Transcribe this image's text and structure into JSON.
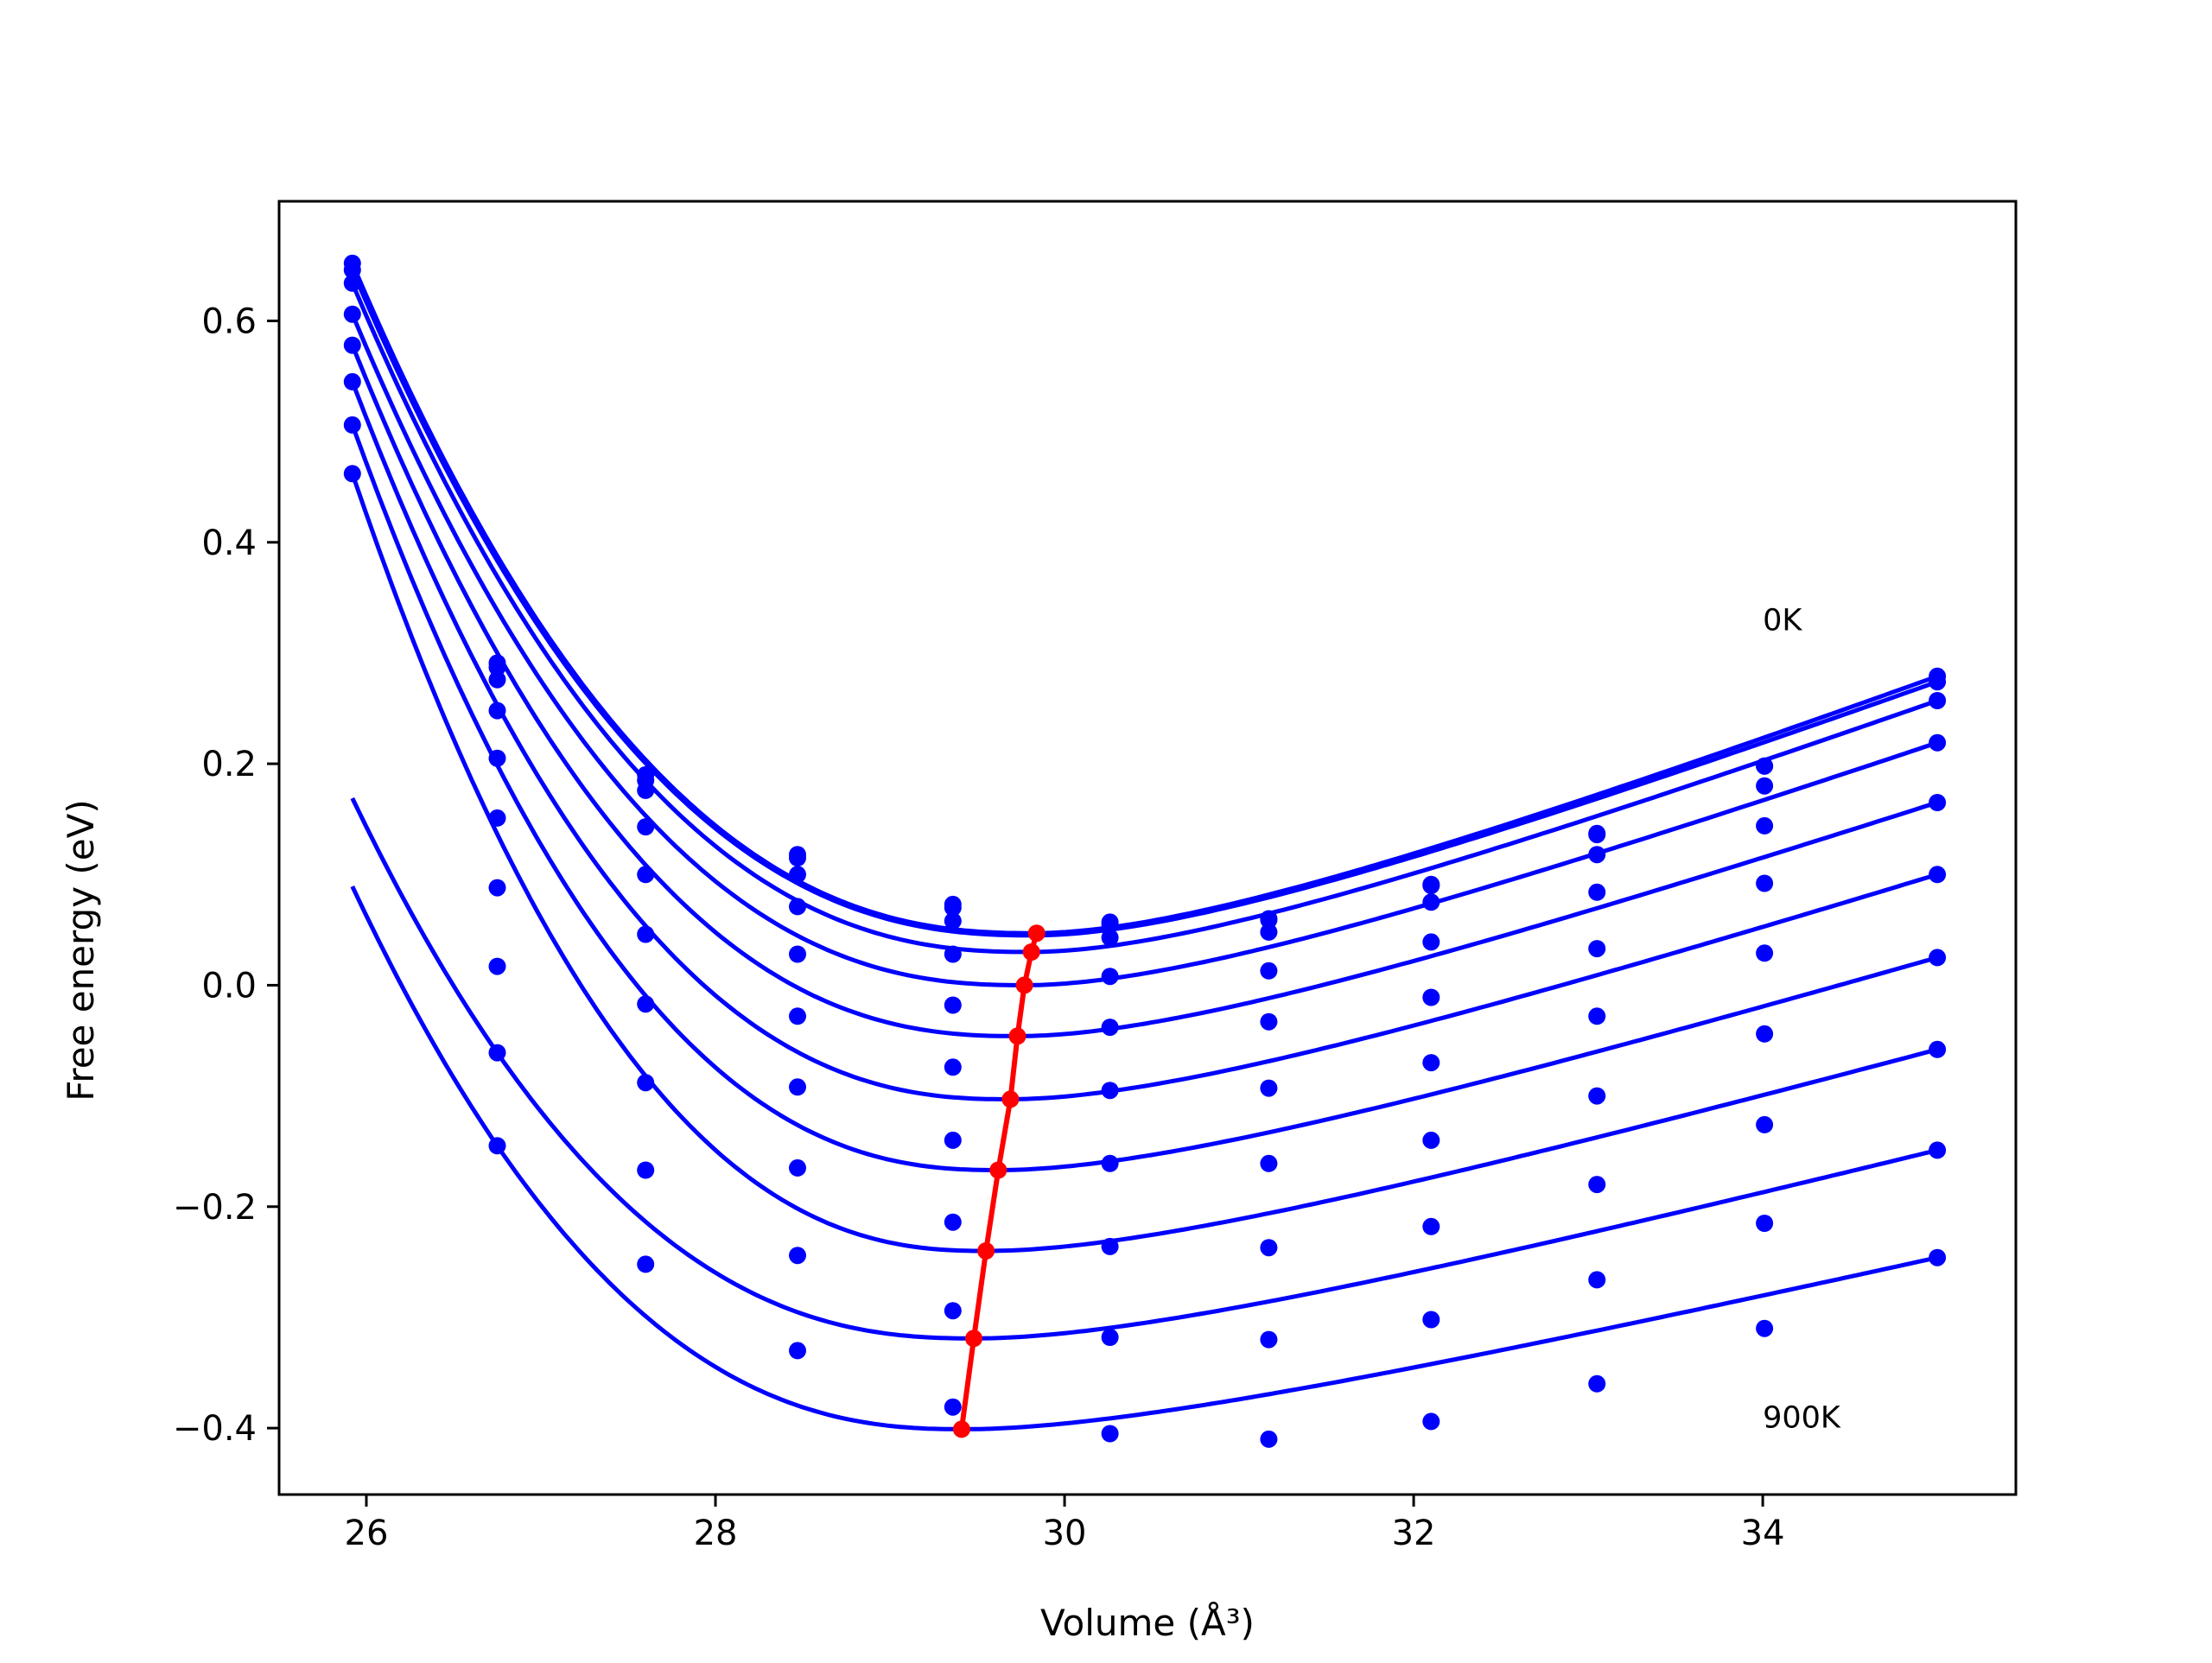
{
  "chart_data": {
    "type": "line",
    "xlabel": "Volume (Å³)",
    "ylabel": "Free energy (eV)",
    "xlim": [
      25.5,
      35.45
    ],
    "ylim": [
      -0.46,
      0.708
    ],
    "xticks": [
      26,
      28,
      30,
      32,
      34
    ],
    "xtick_labels": [
      "26",
      "28",
      "30",
      "32",
      "34"
    ],
    "yticks": [
      -0.4,
      -0.2,
      0.0,
      0.2,
      0.4,
      0.6
    ],
    "ytick_labels": [
      "−0.4",
      "−0.2",
      "0.0",
      "0.2",
      "0.4",
      "0.6"
    ],
    "grid": false,
    "legend": "none",
    "annotations": [
      {
        "text": "0K",
        "x": 34.0,
        "y": 0.33
      },
      {
        "text": "900K",
        "x": 34.0,
        "y": -0.39
      }
    ],
    "colors": {
      "curves": "#0000ff",
      "points": "#0000ff",
      "minima": "#ff0000",
      "frame": "#000000"
    },
    "curve_x_range": [
      25.92,
      35.0
    ],
    "x": [
      25.92,
      26.75,
      27.6,
      28.47,
      29.36,
      30.26,
      31.17,
      32.1,
      33.05,
      34.01,
      35.0
    ],
    "series": [
      {
        "values": [
          0.652,
          0.291,
          0.19,
          0.118,
          0.073,
          0.057,
          0.06,
          0.091,
          0.137,
          0.198,
          0.279
        ],
        "fit": {
          "min_x": 29.82,
          "min_y": 0.047
        }
      },
      {
        "values": [
          0.646,
          0.287,
          0.185,
          0.115,
          0.07,
          0.055,
          0.059,
          0.09,
          0.136,
          0.198,
          0.274
        ],
        "fit": {
          "min_x": 29.82,
          "min_y": 0.045
        }
      },
      {
        "values": [
          0.634,
          0.276,
          0.176,
          0.1,
          0.058,
          0.043,
          0.048,
          0.075,
          0.118,
          0.18,
          0.257
        ],
        "fit": {
          "min_x": 29.8,
          "min_y": 0.03
        }
      },
      {
        "values": [
          0.606,
          0.248,
          0.143,
          0.071,
          0.028,
          0.008,
          0.013,
          0.039,
          0.084,
          0.144,
          0.219
        ],
        "fit": {
          "min_x": 29.77,
          "min_y": 0.0
        }
      },
      {
        "values": [
          0.578,
          0.205,
          0.1,
          0.028,
          -0.018,
          -0.038,
          -0.033,
          -0.011,
          0.033,
          0.092,
          0.165
        ],
        "fit": {
          "min_x": 29.73,
          "min_y": -0.046
        }
      },
      {
        "values": [
          0.545,
          0.151,
          0.046,
          -0.028,
          -0.074,
          -0.095,
          -0.093,
          -0.07,
          -0.028,
          0.029,
          0.1
        ],
        "fit": {
          "min_x": 29.68,
          "min_y": -0.103
        }
      },
      {
        "values": [
          0.506,
          0.088,
          -0.017,
          -0.092,
          -0.14,
          -0.161,
          -0.161,
          -0.14,
          -0.1,
          -0.044,
          0.025
        ],
        "fit": {
          "min_x": 29.62,
          "min_y": -0.167
        }
      },
      {
        "values": [
          0.462,
          0.017,
          -0.088,
          -0.165,
          -0.214,
          -0.236,
          -0.237,
          -0.218,
          -0.18,
          -0.126,
          -0.058
        ],
        "fit": {
          "min_x": 29.55,
          "min_y": -0.24
        }
      },
      {
        "values": [
          null,
          -0.061,
          -0.167,
          -0.244,
          -0.294,
          -0.318,
          -0.32,
          -0.302,
          -0.266,
          -0.215,
          -0.149
        ],
        "fit": {
          "min_x": 29.48,
          "min_y": -0.319
        }
      },
      {
        "values": [
          null,
          -0.145,
          -0.252,
          -0.33,
          -0.381,
          -0.405,
          -0.41,
          -0.394,
          -0.36,
          -0.31,
          -0.246
        ],
        "fit": {
          "min_x": 29.42,
          "min_y": -0.401
        }
      }
    ],
    "minima_path": {
      "x": [
        29.84,
        29.81,
        29.77,
        29.73,
        29.69,
        29.62,
        29.55,
        29.48,
        29.41
      ],
      "y": [
        0.047,
        0.03,
        0.0,
        -0.046,
        -0.103,
        -0.167,
        -0.24,
        -0.319,
        -0.401
      ]
    }
  }
}
